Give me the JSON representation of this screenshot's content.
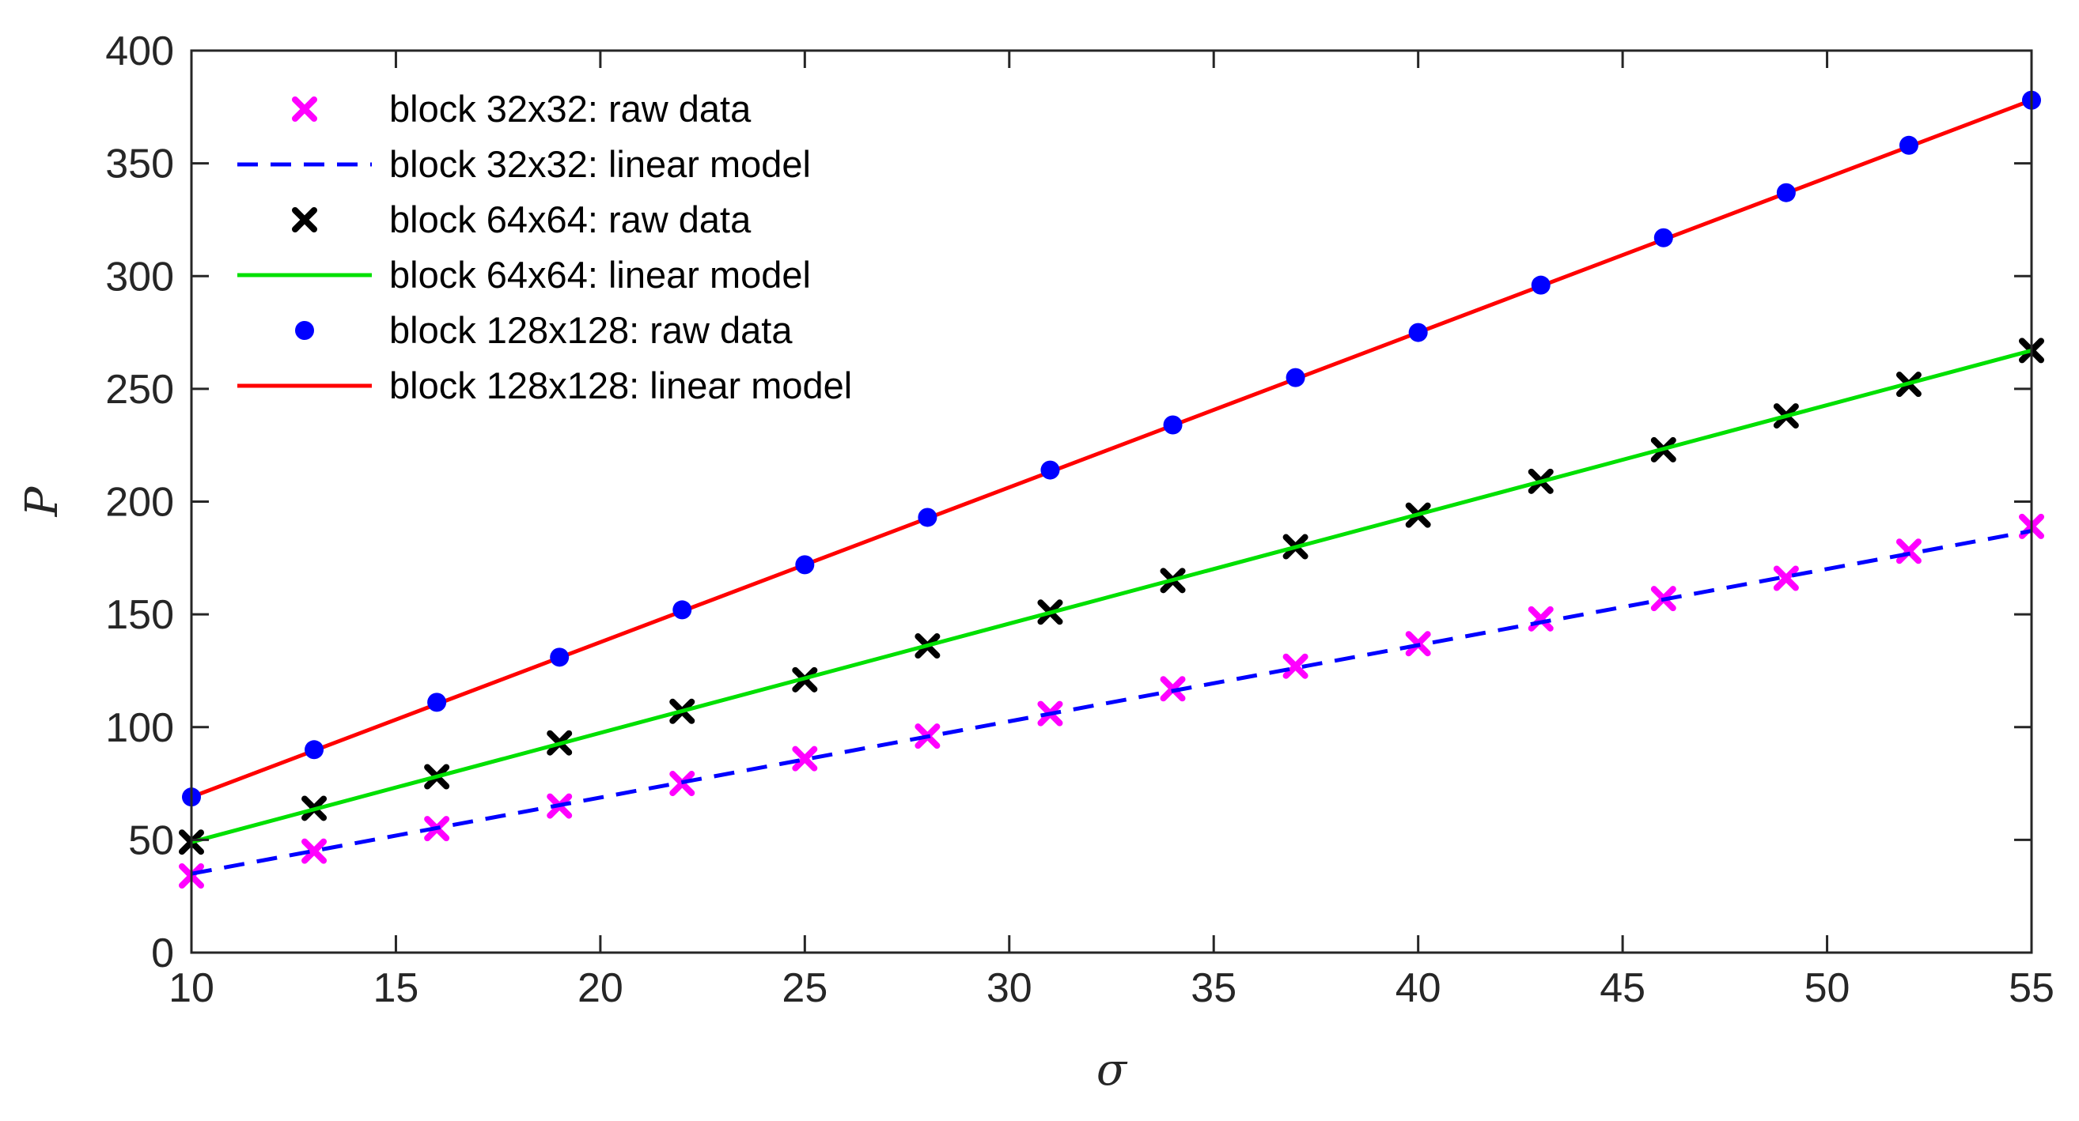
{
  "chart_data": {
    "type": "scatter",
    "title": "",
    "xlabel": "σ",
    "ylabel": "P",
    "xlim": [
      10,
      55
    ],
    "ylim": [
      0,
      400
    ],
    "xticks": [
      10,
      15,
      20,
      25,
      30,
      35,
      40,
      45,
      50,
      55
    ],
    "yticks": [
      0,
      50,
      100,
      150,
      200,
      250,
      300,
      350,
      400
    ],
    "grid": false,
    "legend_position": "top-left",
    "x": [
      10,
      13,
      16,
      19,
      22,
      25,
      28,
      31,
      34,
      37,
      40,
      43,
      46,
      49,
      52,
      55
    ],
    "series": [
      {
        "name": "block 32x32: raw data",
        "kind": "markers",
        "marker": "x",
        "color": "#FF00FF",
        "values": [
          34,
          45,
          55,
          65,
          75,
          86,
          96,
          106,
          117,
          127,
          137,
          148,
          157,
          166,
          178,
          189
        ]
      },
      {
        "name": "block 32x32: linear model",
        "kind": "line",
        "dash": "dashed",
        "color": "#0000FF",
        "line_x": [
          10,
          55
        ],
        "line_y": [
          35,
          187
        ]
      },
      {
        "name": "block 64x64: raw data",
        "kind": "markers",
        "marker": "x",
        "color": "#000000",
        "values": [
          49,
          64,
          78,
          93,
          107,
          121,
          136,
          151,
          165,
          180,
          194,
          209,
          223,
          238,
          252,
          267
        ]
      },
      {
        "name": "block 64x64: linear model",
        "kind": "line",
        "dash": "solid",
        "color": "#00E000",
        "line_x": [
          10,
          55
        ],
        "line_y": [
          49,
          267
        ]
      },
      {
        "name": "block 128x128: raw data",
        "kind": "markers",
        "marker": "dot",
        "color": "#0000FF",
        "values": [
          69,
          90,
          111,
          131,
          152,
          172,
          193,
          214,
          234,
          255,
          275,
          296,
          317,
          337,
          358,
          378
        ]
      },
      {
        "name": "block 128x128: linear model",
        "kind": "line",
        "dash": "solid",
        "color": "#FF0000",
        "line_x": [
          10,
          55
        ],
        "line_y": [
          69,
          378
        ]
      }
    ]
  }
}
